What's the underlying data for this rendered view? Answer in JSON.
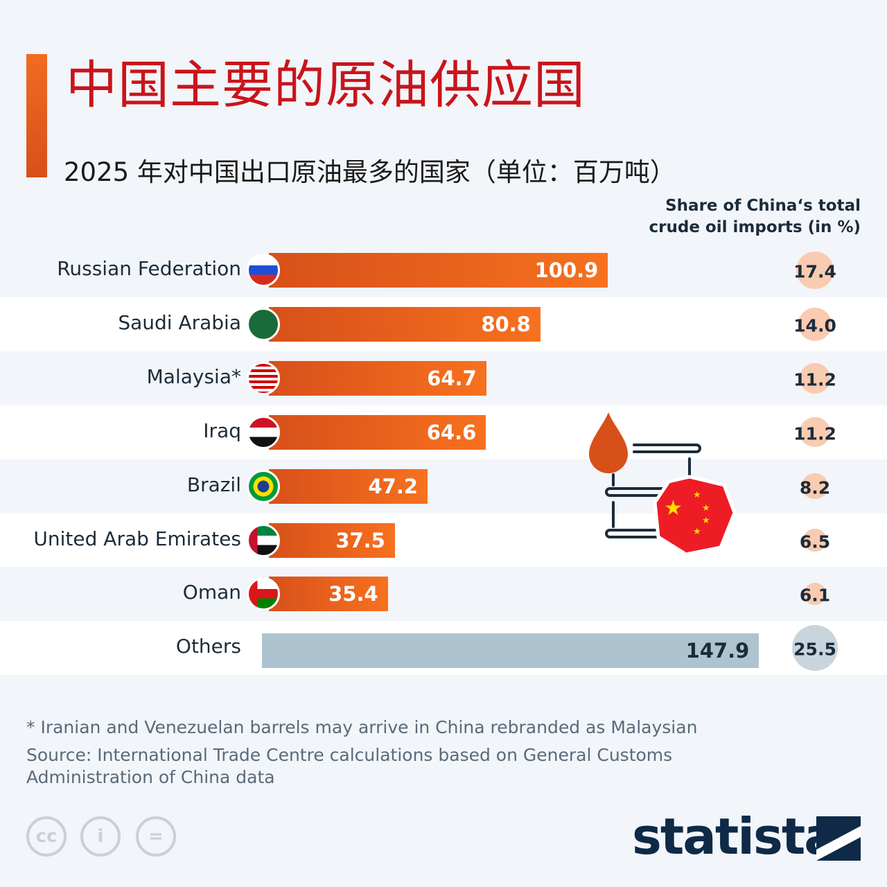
{
  "header": {
    "title": "中国主要的原油供应国",
    "subtitle": "2025 年对中国出口原油最多的国家（单位：百万吨）"
  },
  "chart_data": {
    "type": "bar",
    "orientation": "horizontal",
    "title": "中国主要的原油供应国",
    "subtitle": "2025 年对中国出口原油最多的国家（单位：百万吨）",
    "categories": [
      "Russian Federation",
      "Saudi Arabia",
      "Malaysia*",
      "Iraq",
      "Brazil",
      "United Arab Emirates",
      "Oman",
      "Others"
    ],
    "values": [
      100.9,
      80.8,
      64.7,
      64.6,
      47.2,
      37.5,
      35.4,
      147.9
    ],
    "share_header": "Share of China‘s total crude oil imports (in %)",
    "share_values": [
      "17.4",
      "14.0",
      "11.2",
      "11.2",
      "8.2",
      "6.5",
      "6.1",
      "25.5"
    ],
    "colors": {
      "bar": "#f26b21",
      "others_bar": "#adc3cf",
      "share_circle": "#f9cbb0",
      "others_circle": "#c9d5dd"
    }
  },
  "footer": {
    "note": "* Iranian and Venezuelan barrels may arrive in China rebranded as Malaysian",
    "source": "Source: International Trade Centre calculations based on General Customs Administration of China data",
    "brand": "statista"
  }
}
